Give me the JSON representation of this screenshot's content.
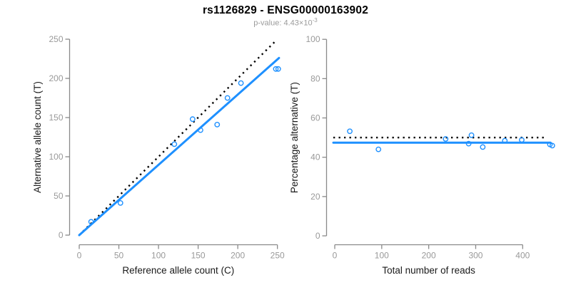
{
  "header": {
    "title": "rs1126829 - ENSG00000163902",
    "subtitle": {
      "label": "p-value: ",
      "value": "4.43",
      "times": "×",
      "base": "10",
      "exponent": "-3"
    }
  },
  "colors": {
    "accent_blue": "#1E90FF",
    "dotted_black": "#000000",
    "axis_gray": "#8a8a8a",
    "tick_label_gray": "#999999",
    "label_black": "#1a1a1a",
    "subtitle_gray": "#9b9b9b",
    "background": "#ffffff"
  },
  "chart_data": [
    {
      "type": "scatter",
      "name": "allele-counts-plot",
      "xlabel": "Reference allele count (C)",
      "ylabel": "Alternative allele count (T)",
      "xlim": [
        0,
        250
      ],
      "ylim": [
        0,
        250
      ],
      "xticks": [
        0,
        50,
        100,
        150,
        200,
        250
      ],
      "yticks": [
        0,
        50,
        100,
        150,
        200,
        250
      ],
      "grid": false,
      "legend": "none",
      "points": [
        [
          15,
          17
        ],
        [
          52,
          41
        ],
        [
          120,
          116
        ],
        [
          143,
          148
        ],
        [
          153,
          134
        ],
        [
          174,
          141
        ],
        [
          187,
          175
        ],
        [
          204,
          194
        ],
        [
          248,
          212
        ],
        [
          251,
          212
        ]
      ],
      "lines": [
        {
          "name": "identity-line",
          "style": "dotted",
          "color": "black",
          "from": [
            0,
            0
          ],
          "to": [
            249,
            249
          ]
        },
        {
          "name": "regression-line",
          "style": "solid",
          "color": "blue",
          "from": [
            0,
            0
          ],
          "to": [
            252,
            226
          ]
        }
      ]
    },
    {
      "type": "scatter",
      "name": "percentage-alternative-plot",
      "xlabel": "Total number of reads",
      "ylabel": "Percentage alternative (T)",
      "xlim": [
        0,
        465
      ],
      "ylim": [
        0,
        100
      ],
      "xticks": [
        0,
        100,
        200,
        300,
        400
      ],
      "yticks": [
        0,
        20,
        40,
        60,
        80,
        100
      ],
      "grid": false,
      "legend": "none",
      "points": [
        [
          32,
          53.2
        ],
        [
          93,
          44.0
        ],
        [
          236,
          49.3
        ],
        [
          285,
          46.9
        ],
        [
          291,
          51.2
        ],
        [
          315,
          45.2
        ],
        [
          362,
          48.4
        ],
        [
          398,
          48.8
        ],
        [
          458,
          46.5
        ],
        [
          463,
          45.9
        ]
      ],
      "lines": [
        {
          "name": "null-50-percent-line",
          "style": "dotted",
          "color": "black",
          "from": [
            -3,
            50
          ],
          "to": [
            451,
            50
          ]
        },
        {
          "name": "fitted-percentage-line",
          "style": "solid",
          "color": "blue",
          "from": [
            -3,
            47.4
          ],
          "to": [
            459,
            47.4
          ]
        }
      ]
    }
  ]
}
